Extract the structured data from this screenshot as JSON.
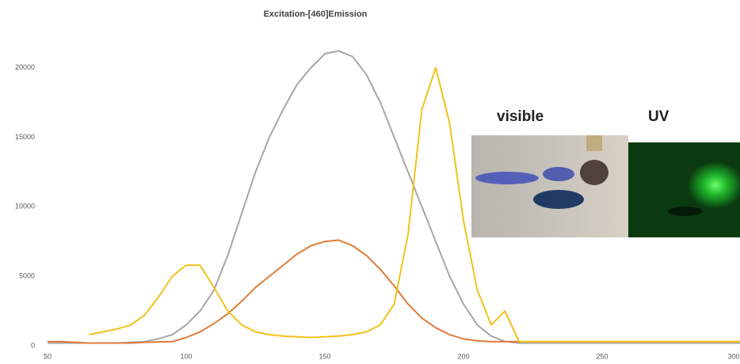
{
  "chart_data": {
    "type": "line",
    "title": "Excitation-[460]Emission",
    "annotations": [
      "visible",
      "UV"
    ],
    "x": [
      50,
      55,
      60,
      65,
      70,
      75,
      80,
      85,
      90,
      95,
      100,
      105,
      110,
      115,
      120,
      125,
      130,
      135,
      140,
      145,
      150,
      155,
      160,
      165,
      170,
      175,
      180,
      185,
      190,
      195,
      200,
      205,
      210,
      215,
      220,
      225,
      230,
      235,
      240,
      245,
      250,
      255,
      260,
      265,
      270,
      275,
      280,
      285,
      290,
      295,
      300
    ],
    "series": [
      {
        "color": "#a6a6a6",
        "values": [
          200,
          200,
          200,
          200,
          200,
          200,
          250,
          300,
          500,
          800,
          1500,
          2500,
          4000,
          6500,
          9500,
          12500,
          15000,
          17000,
          18800,
          20000,
          21000,
          21200,
          20800,
          19500,
          17500,
          15000,
          12500,
          10000,
          7500,
          5000,
          3000,
          1500,
          700,
          300,
          200,
          200,
          200,
          200,
          200,
          200,
          200,
          200,
          200,
          200,
          200,
          200,
          200,
          200,
          200,
          200,
          200
        ]
      },
      {
        "color": "#e07b39",
        "values": [
          300,
          300,
          250,
          200,
          200,
          200,
          200,
          250,
          280,
          300,
          600,
          1000,
          1600,
          2300,
          3200,
          4200,
          5000,
          5800,
          6600,
          7200,
          7500,
          7600,
          7200,
          6500,
          5500,
          4300,
          3000,
          2000,
          1300,
          800,
          500,
          350,
          300,
          300,
          300,
          300,
          300,
          300,
          300,
          300,
          300,
          300,
          300,
          300,
          300,
          300,
          300,
          300,
          300,
          300,
          300
        ]
      },
      {
        "color": "#f2c21b",
        "values": [
          null,
          null,
          null,
          800,
          1000,
          1200,
          1500,
          2200,
          3500,
          5000,
          5800,
          5800,
          4200,
          2500,
          1500,
          1000,
          800,
          700,
          650,
          600,
          650,
          700,
          800,
          1000,
          1500,
          3000,
          8000,
          17000,
          20000,
          16000,
          9000,
          4000,
          1500,
          2500,
          300,
          300,
          300,
          300,
          300,
          300,
          300,
          300,
          300,
          300,
          300,
          300,
          300,
          300,
          300,
          300,
          300
        ]
      }
    ],
    "xlim": [
      50,
      300
    ],
    "xticks": [
      50,
      100,
      150,
      200,
      250,
      300
    ],
    "ylim": [
      0,
      23500
    ],
    "yticks": [
      0,
      5000,
      10000,
      15000,
      20000
    ],
    "grid": false
  }
}
